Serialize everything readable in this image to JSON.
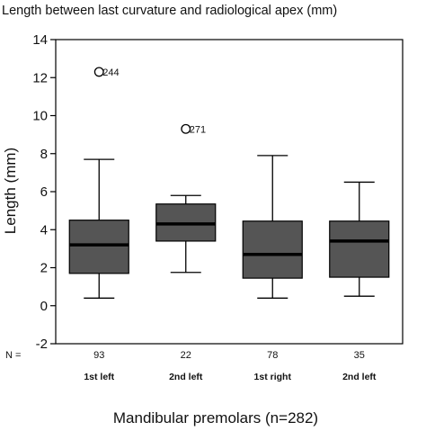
{
  "chart_data": {
    "type": "boxplot",
    "title": "Length between last curvature and radiological apex (mm)",
    "ylabel": "Length (mm)",
    "xlabel": "Mandibular premolars (n=282)",
    "n_prefix": "N =",
    "ylim": [
      -2,
      14
    ],
    "yticks": [
      -2,
      0,
      2,
      4,
      6,
      8,
      10,
      12,
      14
    ],
    "grid": false,
    "box_color": "#555555",
    "categories": [
      {
        "name": "1st left",
        "n": "93",
        "whisker_low": 0.4,
        "q1": 1.7,
        "median": 3.2,
        "q3": 4.5,
        "whisker_high": 7.7,
        "outliers": [
          {
            "value": 12.3,
            "label": "244"
          }
        ]
      },
      {
        "name": "2nd left",
        "n": "22",
        "whisker_low": 1.75,
        "q1": 3.4,
        "median": 4.3,
        "q3": 5.35,
        "whisker_high": 5.8,
        "outliers": [
          {
            "value": 9.3,
            "label": "271"
          }
        ]
      },
      {
        "name": "1st right",
        "n": "78",
        "whisker_low": 0.4,
        "q1": 1.45,
        "median": 2.7,
        "q3": 4.45,
        "whisker_high": 7.9,
        "outliers": []
      },
      {
        "name": "2nd left",
        "n": "35",
        "whisker_low": 0.5,
        "q1": 1.5,
        "median": 3.4,
        "q3": 4.45,
        "whisker_high": 6.5,
        "outliers": []
      }
    ]
  }
}
